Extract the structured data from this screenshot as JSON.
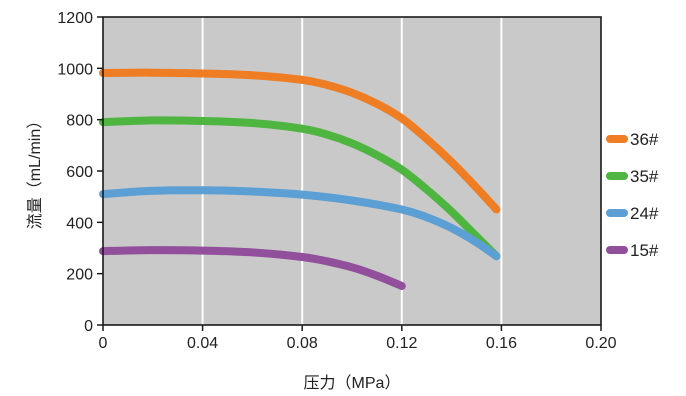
{
  "chart_data": {
    "type": "line",
    "title": "",
    "xlabel": "压力（MPa）",
    "ylabel": "流量（mL/min）",
    "xlim": [
      0,
      0.2
    ],
    "ylim": [
      0,
      1200
    ],
    "x_ticks": [
      0,
      0.04,
      0.08,
      0.12,
      0.16,
      0.2
    ],
    "x_tick_labels": [
      "0",
      "0.04",
      "0.08",
      "0.12",
      "0.16",
      "0.20"
    ],
    "y_ticks": [
      0,
      200,
      400,
      600,
      800,
      1000,
      1200
    ],
    "y_tick_labels": [
      "0",
      "200",
      "400",
      "600",
      "800",
      "1000",
      "1200"
    ],
    "grid": "vertical",
    "legend_position": "right",
    "background_color": "#c9c9c9",
    "series": [
      {
        "name": "36#",
        "color": "#ee7d23",
        "x": [
          0,
          0.02,
          0.04,
          0.06,
          0.08,
          0.09,
          0.1,
          0.11,
          0.12,
          0.13,
          0.14,
          0.15,
          0.158
        ],
        "y": [
          982,
          983,
          980,
          973,
          955,
          935,
          905,
          862,
          805,
          725,
          635,
          535,
          450
        ]
      },
      {
        "name": "35#",
        "color": "#4eb540",
        "x": [
          0,
          0.02,
          0.04,
          0.06,
          0.08,
          0.09,
          0.1,
          0.11,
          0.12,
          0.13,
          0.14,
          0.15,
          0.158
        ],
        "y": [
          790,
          797,
          795,
          787,
          765,
          742,
          708,
          662,
          605,
          528,
          442,
          345,
          268
        ]
      },
      {
        "name": "24#",
        "color": "#5b9fd4",
        "x": [
          0,
          0.02,
          0.04,
          0.06,
          0.08,
          0.1,
          0.12,
          0.13,
          0.14,
          0.15,
          0.158
        ],
        "y": [
          510,
          523,
          525,
          520,
          508,
          485,
          450,
          420,
          378,
          322,
          268
        ]
      },
      {
        "name": "15#",
        "color": "#914f9c",
        "x": [
          0,
          0.02,
          0.04,
          0.06,
          0.08,
          0.09,
          0.1,
          0.11,
          0.12
        ],
        "y": [
          288,
          292,
          290,
          283,
          265,
          248,
          225,
          192,
          152
        ]
      }
    ]
  }
}
